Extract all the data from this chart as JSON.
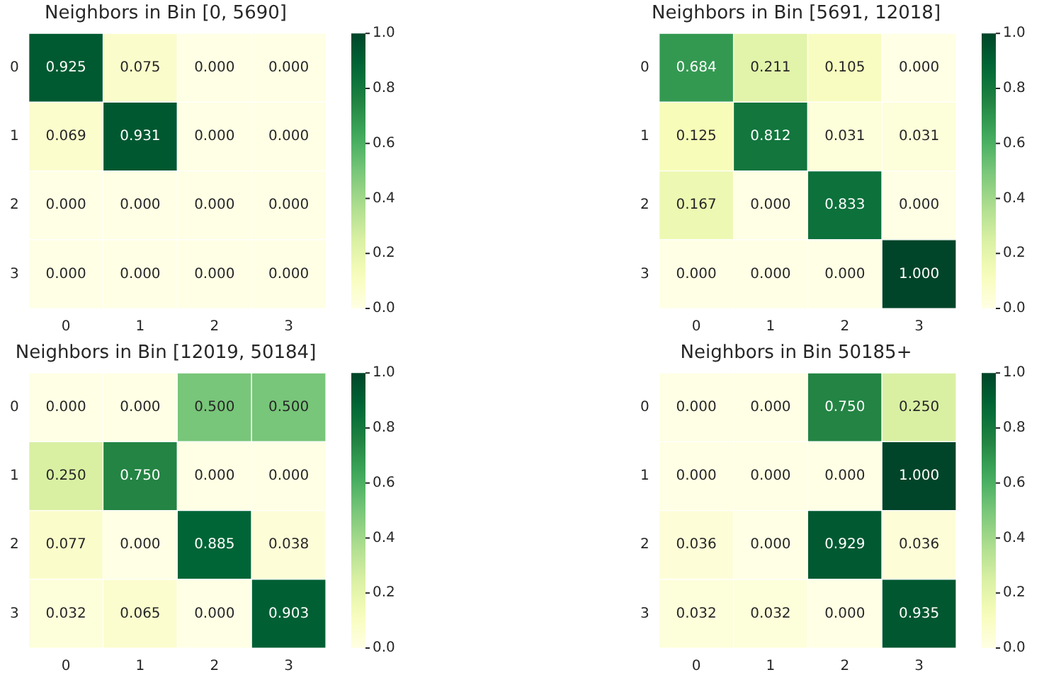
{
  "chart_data": [
    {
      "type": "heatmap",
      "title": "Neighbors in Bin [0, 5690]",
      "categories": [
        "0",
        "1",
        "2",
        "3"
      ],
      "y_categories": [
        "0",
        "1",
        "2",
        "3"
      ],
      "cells": [
        [
          0.925,
          0.075,
          0,
          0
        ],
        [
          0.069,
          0.931,
          0,
          0
        ],
        [
          0,
          0,
          0,
          0
        ],
        [
          0,
          0,
          0,
          0
        ]
      ],
      "cell_labels": [
        [
          "0.925",
          "0.075",
          "0.000",
          "0.000"
        ],
        [
          "0.069",
          "0.931",
          "0.000",
          "0.000"
        ],
        [
          "0.000",
          "0.000",
          "0.000",
          "0.000"
        ],
        [
          "0.000",
          "0.000",
          "0.000",
          "0.000"
        ]
      ],
      "clim": [
        0,
        1
      ],
      "cticks": [
        {
          "value": 0,
          "label": "0.0"
        },
        {
          "value": 0.2,
          "label": "0.2"
        },
        {
          "value": 0.4,
          "label": "0.4"
        },
        {
          "value": 0.6,
          "label": "0.6"
        },
        {
          "value": 0.8,
          "label": "0.8"
        },
        {
          "value": 1,
          "label": "1.0"
        }
      ]
    },
    {
      "type": "heatmap",
      "title": "Neighbors in Bin [5691, 12018]",
      "categories": [
        "0",
        "1",
        "2",
        "3"
      ],
      "y_categories": [
        "0",
        "1",
        "2",
        "3"
      ],
      "cells": [
        [
          0.684,
          0.211,
          0.105,
          0
        ],
        [
          0.125,
          0.812,
          0.031,
          0.031
        ],
        [
          0.167,
          0,
          0.833,
          0
        ],
        [
          0,
          0,
          0,
          1
        ]
      ],
      "cell_labels": [
        [
          "0.684",
          "0.211",
          "0.105",
          "0.000"
        ],
        [
          "0.125",
          "0.812",
          "0.031",
          "0.031"
        ],
        [
          "0.167",
          "0.000",
          "0.833",
          "0.000"
        ],
        [
          "0.000",
          "0.000",
          "0.000",
          "1.000"
        ]
      ],
      "clim": [
        0,
        1
      ],
      "cticks": [
        {
          "value": 0,
          "label": "0.0"
        },
        {
          "value": 0.2,
          "label": "0.2"
        },
        {
          "value": 0.4,
          "label": "0.4"
        },
        {
          "value": 0.6,
          "label": "0.6"
        },
        {
          "value": 0.8,
          "label": "0.8"
        },
        {
          "value": 1,
          "label": "1.0"
        }
      ]
    },
    {
      "type": "heatmap",
      "title": "Neighbors in Bin [12019, 50184]",
      "categories": [
        "0",
        "1",
        "2",
        "3"
      ],
      "y_categories": [
        "0",
        "1",
        "2",
        "3"
      ],
      "cells": [
        [
          0,
          0,
          0.5,
          0.5
        ],
        [
          0.25,
          0.75,
          0,
          0
        ],
        [
          0.077,
          0,
          0.885,
          0.038
        ],
        [
          0.032,
          0.065,
          0,
          0.903
        ]
      ],
      "cell_labels": [
        [
          "0.000",
          "0.000",
          "0.500",
          "0.500"
        ],
        [
          "0.250",
          "0.750",
          "0.000",
          "0.000"
        ],
        [
          "0.077",
          "0.000",
          "0.885",
          "0.038"
        ],
        [
          "0.032",
          "0.065",
          "0.000",
          "0.903"
        ]
      ],
      "clim": [
        0,
        1
      ],
      "cticks": [
        {
          "value": 0,
          "label": "0.0"
        },
        {
          "value": 0.2,
          "label": "0.2"
        },
        {
          "value": 0.4,
          "label": "0.4"
        },
        {
          "value": 0.6,
          "label": "0.6"
        },
        {
          "value": 0.8,
          "label": "0.8"
        },
        {
          "value": 1,
          "label": "1.0"
        }
      ]
    },
    {
      "type": "heatmap",
      "title": "Neighbors in Bin 50185+",
      "categories": [
        "0",
        "1",
        "2",
        "3"
      ],
      "y_categories": [
        "0",
        "1",
        "2",
        "3"
      ],
      "cells": [
        [
          0,
          0,
          0.75,
          0.25
        ],
        [
          0,
          0,
          0,
          1
        ],
        [
          0.036,
          0,
          0.929,
          0.036
        ],
        [
          0.032,
          0.032,
          0,
          0.935
        ]
      ],
      "cell_labels": [
        [
          "0.000",
          "0.000",
          "0.750",
          "0.250"
        ],
        [
          "0.000",
          "0.000",
          "0.000",
          "1.000"
        ],
        [
          "0.036",
          "0.000",
          "0.929",
          "0.036"
        ],
        [
          "0.032",
          "0.032",
          "0.000",
          "0.935"
        ]
      ],
      "clim": [
        0,
        1
      ],
      "cticks": [
        {
          "value": 0,
          "label": "0.0"
        },
        {
          "value": 0.2,
          "label": "0.2"
        },
        {
          "value": 0.4,
          "label": "0.4"
        },
        {
          "value": 0.6,
          "label": "0.6"
        },
        {
          "value": 0.8,
          "label": "0.8"
        },
        {
          "value": 1,
          "label": "1.0"
        }
      ]
    }
  ]
}
